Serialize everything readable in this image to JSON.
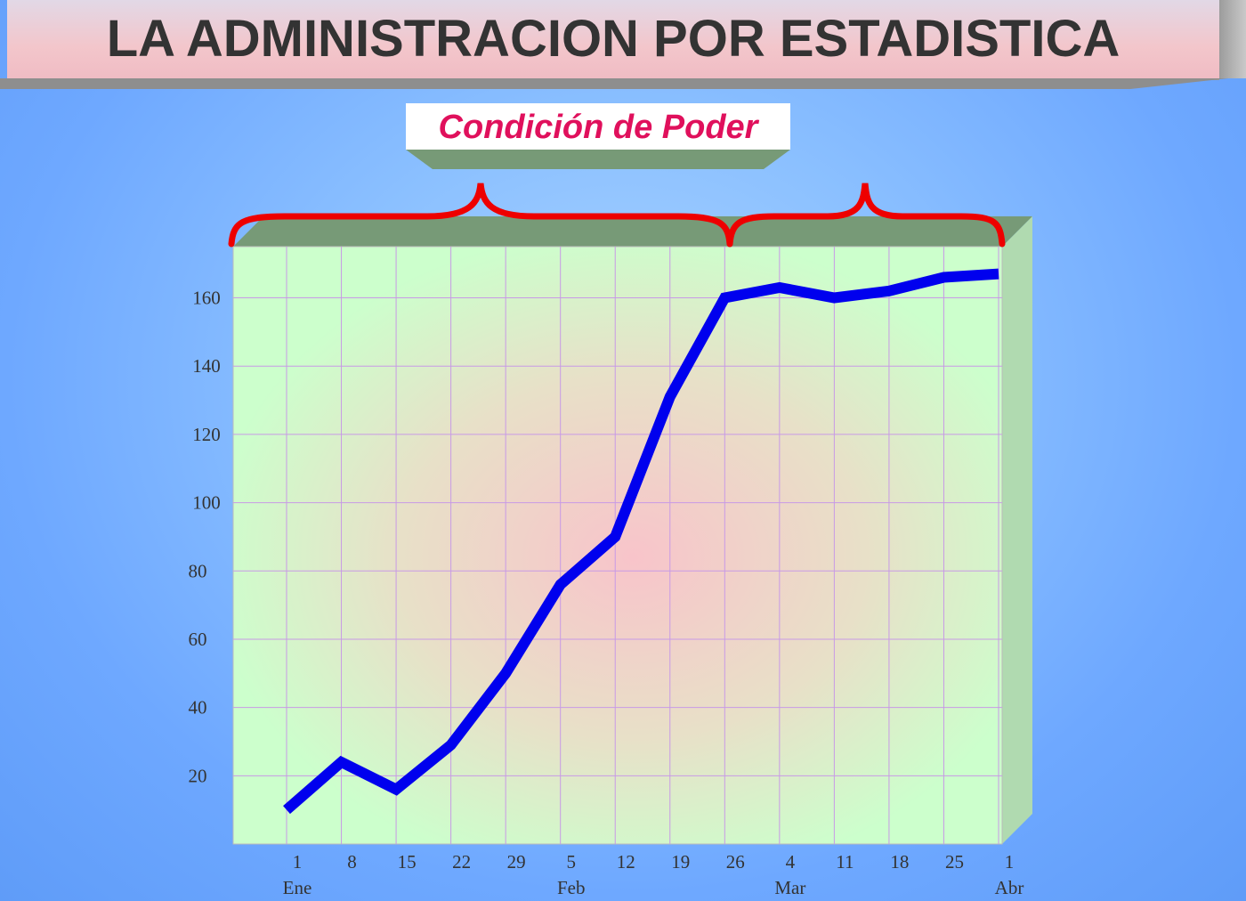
{
  "header": {
    "title": "LA ADMINISTRACION POR ESTADISTICA",
    "subtitle": "Condición de Poder"
  },
  "colors": {
    "line": "#0000ee",
    "brace": "#ee0000",
    "plot_bg_center": "#f6c8cc",
    "plot_bg_edge": "#ccffcc",
    "gridline": "#c89ae6",
    "title_text": "#333333",
    "subtitle_text": "#e0105c"
  },
  "chart_data": {
    "type": "line",
    "title": "",
    "xlabel": "",
    "ylabel": "",
    "x_tick_labels": [
      "1",
      "8",
      "15",
      "22",
      "29",
      "5",
      "12",
      "19",
      "26",
      "4",
      "11",
      "18",
      "25",
      "1"
    ],
    "month_labels": [
      "Ene",
      "Feb",
      "Mar",
      "Abr"
    ],
    "y_tick_labels": [
      "20",
      "40",
      "60",
      "80",
      "100",
      "120",
      "140",
      "160"
    ],
    "series": [
      {
        "values": [
          10,
          24,
          16,
          29,
          50,
          76,
          90,
          131,
          160,
          163,
          160,
          162,
          166,
          167
        ]
      }
    ],
    "ylim": [
      0,
      175
    ],
    "grid": true,
    "legend": "none"
  }
}
